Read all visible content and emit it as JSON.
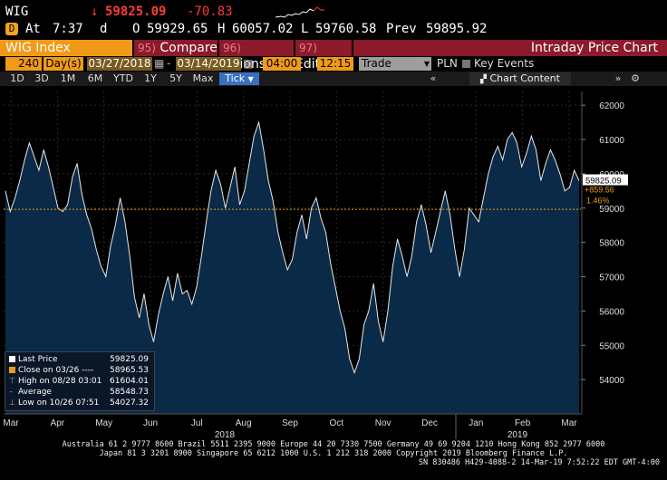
{
  "quote": {
    "ticker": "WIG",
    "down_arrow": "↓",
    "last": "59825.09",
    "change": "-70.83",
    "at_label": "At",
    "time": "7:37",
    "time_suffix": "d",
    "open_label": "O",
    "open": "59929.65",
    "high_label": "H",
    "high": "60057.02",
    "low_label": "L",
    "low": "59760.58",
    "prev_label": "Prev",
    "prev": "59895.92"
  },
  "title_bar": {
    "security": "WIG Index",
    "compare_num": "95)",
    "compare": "Compare",
    "actions_num": "96)",
    "actions": "Actions",
    "edit_num": "97)",
    "edit": "Edit",
    "chart_name": "Intraday Price Chart"
  },
  "params": {
    "bars": "240",
    "period": "Day(s)",
    "start": "03/27/2018",
    "end": "03/14/2019",
    "t_start": "04:00",
    "t_end": "12:15",
    "field": "Trade",
    "currency": "PLN",
    "key_events": "Key Events"
  },
  "toolbar": {
    "buttons": [
      "1D",
      "3D",
      "1M",
      "6M",
      "YTD",
      "1Y",
      "5Y",
      "Max"
    ],
    "tick": "Tick",
    "chart_content": "Chart Content"
  },
  "chart_data": {
    "type": "area",
    "y_ticks": [
      54000,
      55000,
      56000,
      57000,
      58000,
      59000,
      60000,
      61000,
      62000
    ],
    "ylim": [
      53000,
      62400
    ],
    "x_ticks": [
      "Mar",
      "Apr",
      "May",
      "Jun",
      "Jul",
      "Aug",
      "Sep",
      "Oct",
      "Nov",
      "Dec",
      "Jan",
      "Feb",
      "Mar"
    ],
    "year_labels": [
      "2018",
      "2019"
    ],
    "last_price": 59825.09,
    "last_price_label": "59825.09",
    "close_line": 58965.53,
    "change_label": "+859.56",
    "change_pct_label": "1.46%",
    "series": [
      {
        "name": "Last Price",
        "values": [
          59500,
          58900,
          59300,
          59800,
          60400,
          60900,
          60500,
          60100,
          60700,
          60200,
          59600,
          59000,
          58900,
          59100,
          59900,
          60300,
          59400,
          58800,
          58400,
          57800,
          57300,
          57000,
          57900,
          58500,
          59300,
          58600,
          57600,
          56400,
          55800,
          56500,
          55600,
          55100,
          55900,
          56500,
          57000,
          56300,
          57100,
          56500,
          56600,
          56200,
          56700,
          57600,
          58600,
          59500,
          60100,
          59700,
          59000,
          59600,
          60200,
          59100,
          59500,
          60300,
          61100,
          61500,
          60700,
          59800,
          59200,
          58300,
          57700,
          57200,
          57500,
          58300,
          58800,
          58100,
          59000,
          59300,
          58700,
          58300,
          57400,
          56700,
          56000,
          55500,
          54600,
          54200,
          54600,
          55600,
          56000,
          56800,
          55700,
          55100,
          56000,
          57300,
          58100,
          57600,
          57000,
          57600,
          58600,
          59100,
          58500,
          57700,
          58300,
          58900,
          59500,
          58800,
          57800,
          57000,
          57800,
          59000,
          58800,
          58600,
          59300,
          60000,
          60500,
          60800,
          60400,
          61000,
          61200,
          60900,
          60200,
          60600,
          61100,
          60700,
          59800,
          60300,
          60700,
          60400,
          60000,
          59500,
          59600,
          60100,
          59800
        ]
      }
    ]
  },
  "legend": {
    "rows": [
      {
        "label": "Last Price",
        "value": "59825.09",
        "color": "#ffffff"
      },
      {
        "label": "Close on 03/26 ----",
        "value": "58965.53",
        "color": "#f19a17"
      },
      {
        "label": "High on 08/28 03:01",
        "value": "61604.01",
        "color": ""
      },
      {
        "label": "Average",
        "value": "58548.73",
        "color": ""
      },
      {
        "label": "Low on 10/26 07:51",
        "value": "54027.32",
        "color": ""
      }
    ]
  },
  "footer": {
    "line1": "Australia 61 2 9777 8600 Brazil 5511 2395 9000 Europe 44 20 7330 7500 Germany 49 69 9204 1210 Hong Kong 852 2977 6000",
    "line2": "Japan 81 3 3201 8900        Singapore 65 6212 1000        U.S. 1 212 318 2000             Copyright 2019 Bloomberg Finance L.P.",
    "line3": "SN 830486 H429-4088-2 14-Mar-19  7:52:22 EDT  GMT-4:00"
  },
  "colors": {
    "amber": "#f19a17",
    "maroon": "#8b1a2b",
    "area_fill": "#0b2a48",
    "down": "#ff3b3b"
  }
}
